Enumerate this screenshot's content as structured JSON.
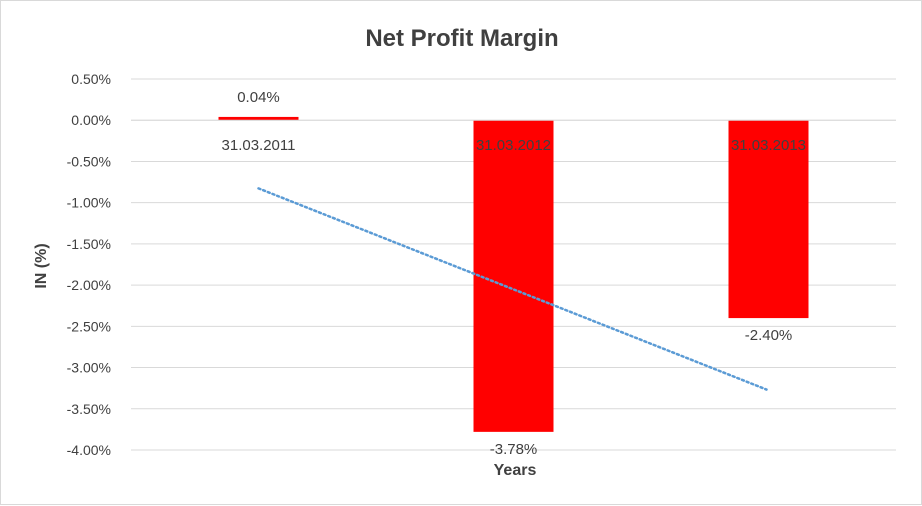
{
  "chart_data": {
    "type": "bar",
    "title": "Net Profit Margin",
    "xlabel": "Years",
    "ylabel": "IN (%)",
    "categories": [
      "31.03.2011",
      "31.03.2012",
      "31.03.2013"
    ],
    "values": [
      0.04,
      -3.78,
      -2.4
    ],
    "data_labels": [
      "0.04%",
      "-3.78%",
      "-2.40%"
    ],
    "ylim": [
      -4.0,
      0.5
    ],
    "yticks": [
      0.5,
      0.0,
      -0.5,
      -1.0,
      -1.5,
      -2.0,
      -2.5,
      -3.0,
      -3.5,
      -4.0
    ],
    "ytick_labels": [
      "0.50%",
      "0.00%",
      "-0.50%",
      "-1.00%",
      "-1.50%",
      "-2.00%",
      "-2.50%",
      "-3.00%",
      "-3.50%",
      "-4.00%"
    ],
    "trendline": {
      "type": "linear",
      "style": "dotted"
    },
    "grid": true,
    "legend": "none",
    "colors": {
      "bar": "#ff0000",
      "trendline": "#5b9bd5",
      "grid": "#d9d9d9",
      "text": "#404040"
    }
  }
}
